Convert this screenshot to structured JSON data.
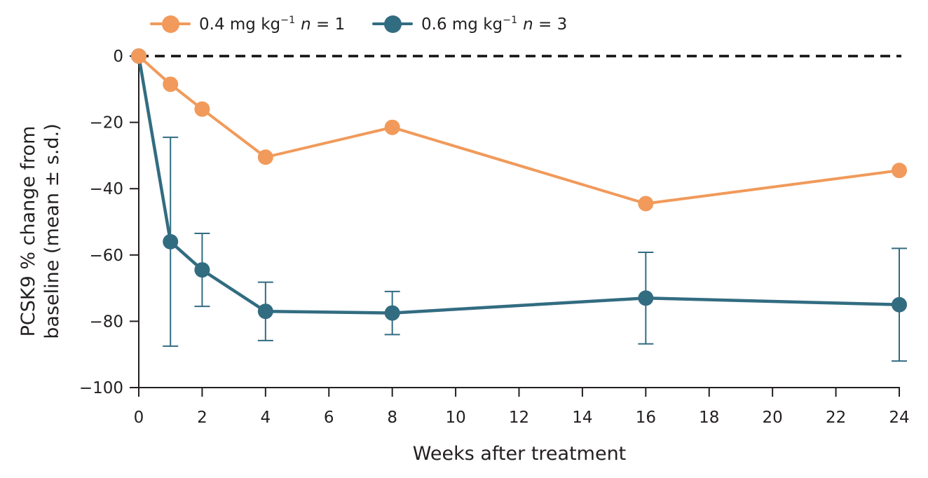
{
  "chart_data": {
    "type": "line",
    "title": "",
    "xlabel": "Weeks after treatment",
    "ylabel": "PCSK9 % change from baseline (mean ± s.d.)",
    "ylabel_line1": "PCSK9 % change from",
    "ylabel_line2": "baseline (mean ± s.d.)",
    "xlim": [
      0,
      24
    ],
    "ylim": [
      -100,
      0
    ],
    "x_ticks": [
      0,
      2,
      4,
      6,
      8,
      10,
      12,
      14,
      16,
      18,
      20,
      22,
      24
    ],
    "y_ticks": [
      0,
      -20,
      -40,
      -60,
      -80,
      -100
    ],
    "grid": false,
    "legend_position": "top-left",
    "axis_color": "#231F20",
    "baseline_reference_line": {
      "y": 0,
      "style": "dashed",
      "color": "#111111"
    },
    "series": [
      {
        "name": "0.4 mg kg⁻¹ n = 1",
        "legend": {
          "dose": "0.4 mg kg",
          "exponent": "−1",
          "n_var": "n",
          "n_value": " = 1"
        },
        "color": "#F19A5B",
        "line_width": 4,
        "marker_radius": 11,
        "x": [
          0,
          1,
          2,
          4,
          8,
          16,
          24
        ],
        "y": [
          0,
          -8.5,
          -16,
          -30.5,
          -21.5,
          -44.5,
          -34.5
        ],
        "sd": [
          0,
          0,
          0,
          0,
          0,
          0,
          0
        ]
      },
      {
        "name": "0.6 mg kg⁻¹ n = 3",
        "legend": {
          "dose": "0.6 mg kg",
          "exponent": "−1",
          "n_var": "n",
          "n_value": " = 3"
        },
        "color": "#326C81",
        "line_width": 4.5,
        "marker_radius": 11,
        "x": [
          0,
          1,
          2,
          4,
          8,
          16,
          24
        ],
        "y": [
          0,
          -56,
          -64.5,
          -77,
          -77.5,
          -73,
          -75
        ],
        "sd": [
          0,
          31.5,
          11,
          8.8,
          6.5,
          13.8,
          17
        ]
      }
    ]
  }
}
